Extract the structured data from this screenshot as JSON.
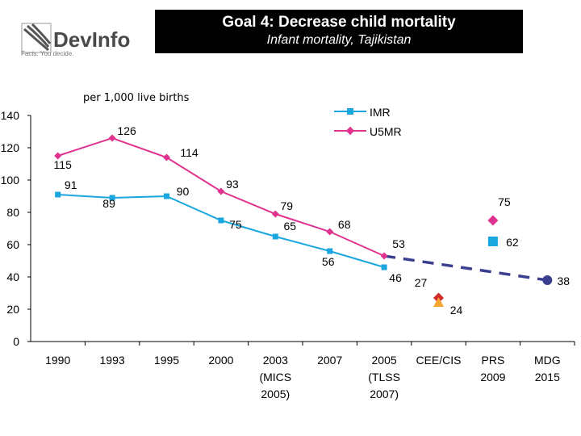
{
  "logo": {
    "name": "DevInfo",
    "tagline": "Facts. You decide."
  },
  "header": {
    "title": "Goal 4: Decrease child mortality",
    "subtitle": "Infant mortality, Tajikistan"
  },
  "chart_data": {
    "type": "line",
    "ylabel": "per 1,000 live births",
    "ylim": [
      0,
      140
    ],
    "yticks": [
      0,
      20,
      40,
      60,
      80,
      100,
      120,
      140
    ],
    "grid": false,
    "legend_placement": "top-center",
    "categories": [
      "1990",
      "1993",
      "1995",
      "2000",
      "2003\n(MICS\n2005)",
      "2007",
      "2005\n(TLSS\n2007)",
      "CEE/CIS",
      "PRS\n2009",
      "MDG\n2015"
    ],
    "series": [
      {
        "name": "IMR",
        "color": "#1aa6de",
        "values": [
          91,
          89,
          90,
          75,
          65,
          56,
          46,
          null,
          null,
          null
        ]
      },
      {
        "name": "U5MR",
        "color": "#e0338f",
        "values": [
          115,
          126,
          114,
          93,
          79,
          68,
          53,
          null,
          null,
          null
        ]
      }
    ],
    "extra_points": [
      {
        "category": "CEE/CIS",
        "value": 27,
        "label": "27",
        "color": "#d02a2a",
        "shape": "diamond"
      },
      {
        "category": "CEE/CIS",
        "value": 24,
        "label": "24",
        "color": "#f7a431",
        "shape": "triangle"
      },
      {
        "category": "PRS\n2009",
        "value": 75,
        "label": "75",
        "color": "#e0338f",
        "shape": "diamond"
      },
      {
        "category": "PRS\n2009",
        "value": 62,
        "label": "62",
        "color": "#1aa6de",
        "shape": "square"
      },
      {
        "category": "MDG\n2015",
        "value": 38,
        "label": "38",
        "color": "#3a3f8f",
        "shape": "circle"
      }
    ],
    "target_line": {
      "from": {
        "category": "2005\n(TLSS\n2007)",
        "value": 53
      },
      "to": {
        "category": "MDG\n2015",
        "value": 38
      },
      "color": "#3a3f8f",
      "style": "dashed"
    }
  }
}
